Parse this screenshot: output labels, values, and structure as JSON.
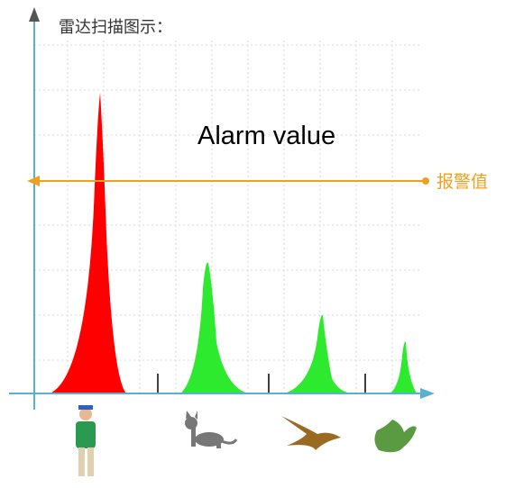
{
  "title": "雷达扫描图示：",
  "annotation": "Alarm value",
  "alarm_label": "报警值"
}
